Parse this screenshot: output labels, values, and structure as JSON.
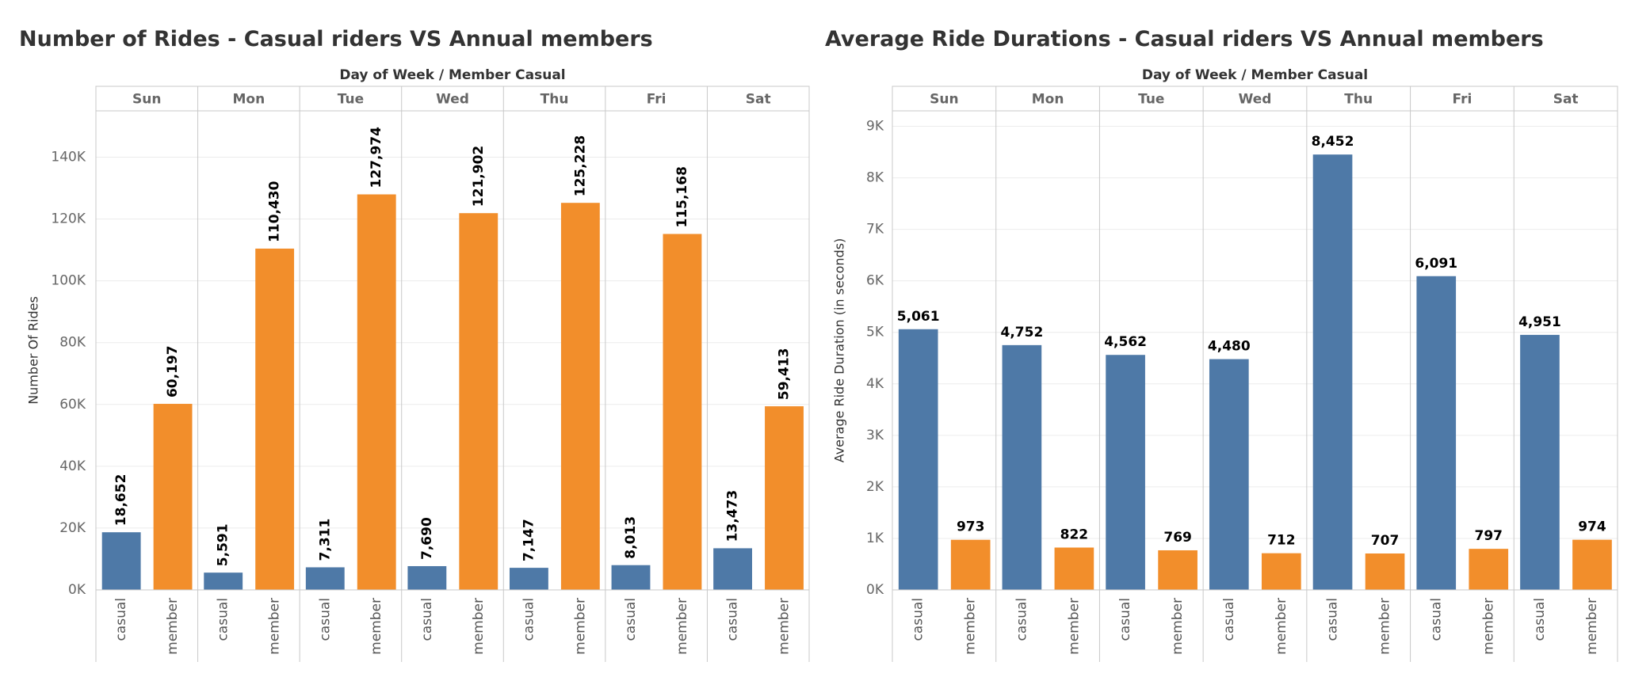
{
  "chart_data": [
    {
      "type": "bar",
      "title": "Number of Rides - Casual riders VS Annual members",
      "header": "Day of Week  /  Member Casual",
      "y_label": "Number Of Rides",
      "facets": [
        "Sun",
        "Mon",
        "Tue",
        "Wed",
        "Thu",
        "Fri",
        "Sat"
      ],
      "categories": [
        "casual",
        "member"
      ],
      "colors": [
        "#4e79a7",
        "#f28e2b"
      ],
      "values": [
        [
          18652,
          60197
        ],
        [
          5591,
          110430
        ],
        [
          7311,
          127974
        ],
        [
          7690,
          121902
        ],
        [
          7147,
          125228
        ],
        [
          8013,
          115168
        ],
        [
          13473,
          59413
        ]
      ],
      "value_labels": [
        [
          "18,652",
          "60,197"
        ],
        [
          "5,591",
          "110,430"
        ],
        [
          "7,311",
          "127,974"
        ],
        [
          "7,690",
          "121,902"
        ],
        [
          "7,147",
          "125,228"
        ],
        [
          "8,013",
          "115,168"
        ],
        [
          "13,473",
          "59,413"
        ]
      ],
      "value_label_orientation": "vertical",
      "ylim": [
        0,
        155000
      ],
      "yticks": [
        {
          "value": 0,
          "label": "0K"
        },
        {
          "value": 20000,
          "label": "20K"
        },
        {
          "value": 40000,
          "label": "40K"
        },
        {
          "value": 60000,
          "label": "60K"
        },
        {
          "value": 80000,
          "label": "80K"
        },
        {
          "value": 100000,
          "label": "100K"
        },
        {
          "value": 120000,
          "label": "120K"
        },
        {
          "value": 140000,
          "label": "140K"
        }
      ],
      "grid": true
    },
    {
      "type": "bar",
      "title": "Average Ride Durations - Casual riders VS Annual members",
      "header": "Day of Week  /  Member Casual",
      "y_label": "Average Ride Duration (in seconds)",
      "facets": [
        "Sun",
        "Mon",
        "Tue",
        "Wed",
        "Thu",
        "Fri",
        "Sat"
      ],
      "categories": [
        "casual",
        "member"
      ],
      "colors": [
        "#4e79a7",
        "#f28e2b"
      ],
      "values": [
        [
          5061,
          973
        ],
        [
          4752,
          822
        ],
        [
          4562,
          769
        ],
        [
          4480,
          712
        ],
        [
          8452,
          707
        ],
        [
          6091,
          797
        ],
        [
          4951,
          974
        ]
      ],
      "value_labels": [
        [
          "5,061",
          "973"
        ],
        [
          "4,752",
          "822"
        ],
        [
          "4,562",
          "769"
        ],
        [
          "4,480",
          "712"
        ],
        [
          "8,452",
          "707"
        ],
        [
          "6,091",
          "797"
        ],
        [
          "4,951",
          "974"
        ]
      ],
      "value_label_orientation": "horizontal",
      "ylim": [
        0,
        9300
      ],
      "yticks": [
        {
          "value": 0,
          "label": "0K"
        },
        {
          "value": 1000,
          "label": "1K"
        },
        {
          "value": 2000,
          "label": "2K"
        },
        {
          "value": 3000,
          "label": "3K"
        },
        {
          "value": 4000,
          "label": "4K"
        },
        {
          "value": 5000,
          "label": "5K"
        },
        {
          "value": 6000,
          "label": "6K"
        },
        {
          "value": 7000,
          "label": "7K"
        },
        {
          "value": 8000,
          "label": "8K"
        },
        {
          "value": 9000,
          "label": "9K"
        }
      ],
      "grid": true
    }
  ]
}
